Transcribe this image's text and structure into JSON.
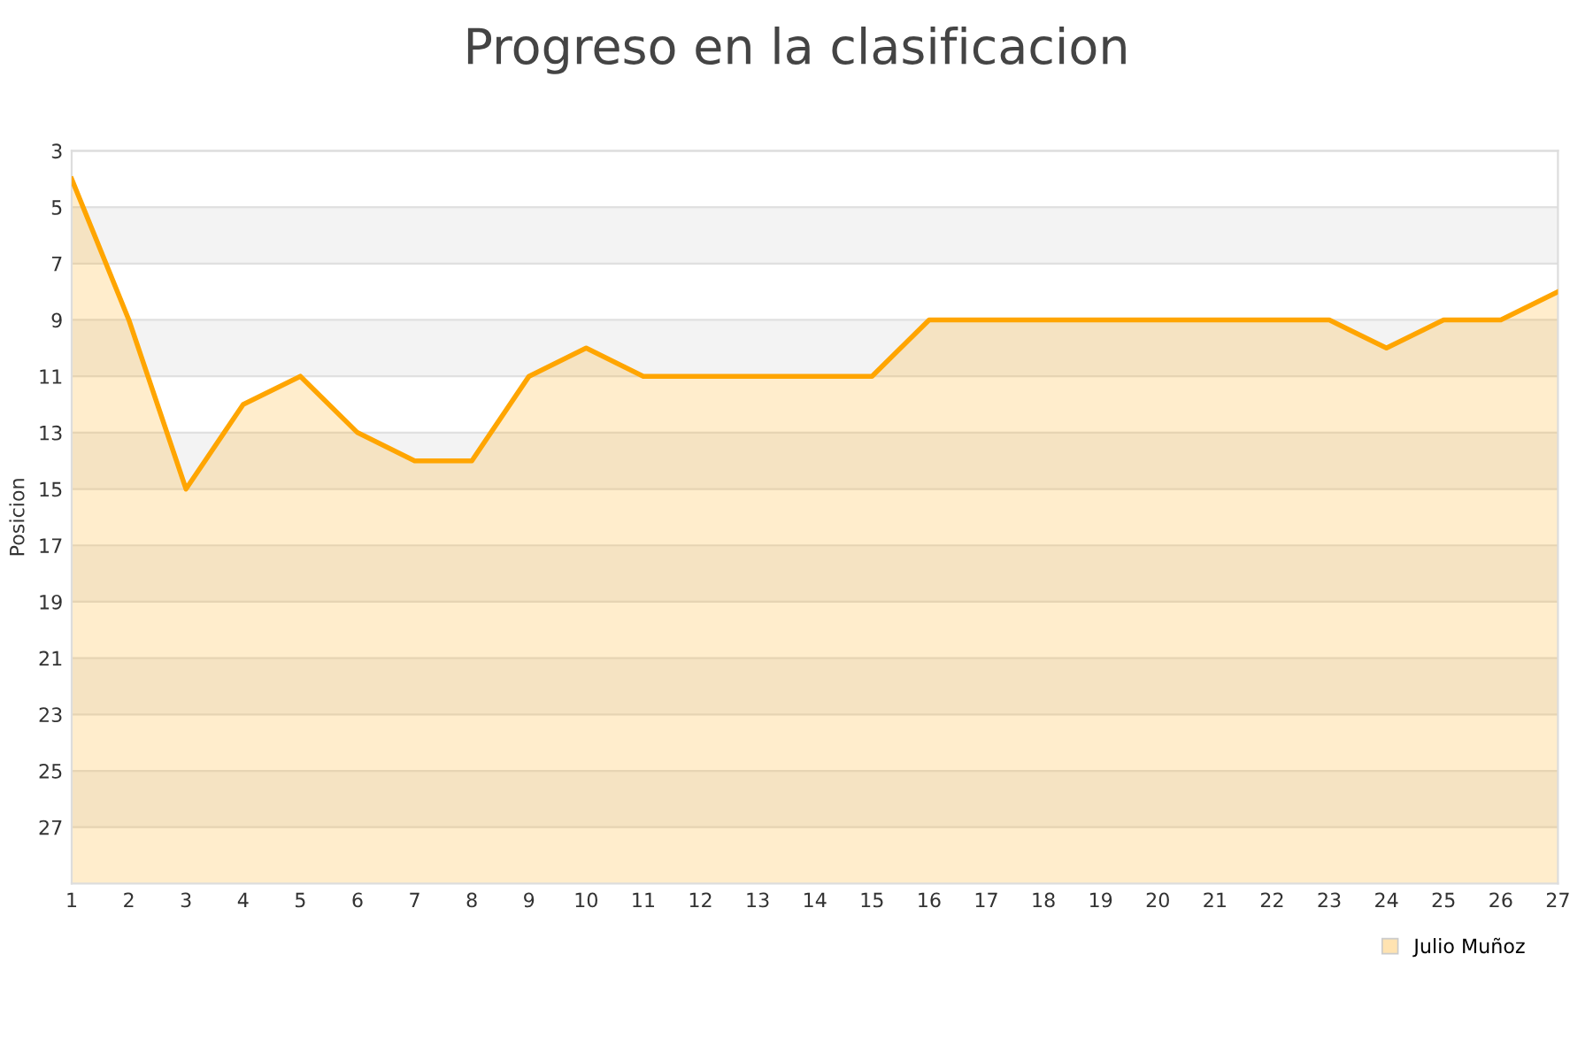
{
  "chart_data": {
    "type": "line",
    "title": "Progreso en la clasificacion",
    "ylabel": "Posicion",
    "x": [
      1,
      2,
      3,
      4,
      5,
      6,
      7,
      8,
      9,
      10,
      11,
      12,
      13,
      14,
      15,
      16,
      17,
      18,
      19,
      20,
      21,
      22,
      23,
      24,
      25,
      26,
      27
    ],
    "series": [
      {
        "name": "Julio Muñoz",
        "color": "#ffa500",
        "values": [
          4,
          9,
          15,
          12,
          11,
          13,
          14,
          14,
          11,
          10,
          11,
          11,
          11,
          11,
          11,
          9,
          9,
          9,
          9,
          9,
          9,
          9,
          9,
          10,
          9,
          9,
          8
        ],
        "lower": [
          4,
          9,
          15,
          12,
          11,
          13,
          14,
          14,
          11,
          10,
          11,
          11,
          11,
          11,
          11,
          9,
          9,
          9,
          9,
          9,
          9,
          9,
          9,
          10,
          9,
          9,
          8
        ],
        "upper": [
          29,
          29,
          29,
          29,
          29,
          29,
          29,
          29,
          29,
          29,
          29,
          29,
          29,
          29,
          29,
          29,
          29,
          29,
          29,
          29,
          29,
          29,
          29,
          29,
          29,
          29,
          29
        ]
      }
    ],
    "xlim": [
      1,
      27
    ],
    "xticks": [
      1,
      2,
      3,
      4,
      5,
      6,
      7,
      8,
      9,
      10,
      11,
      12,
      13,
      14,
      15,
      16,
      17,
      18,
      19,
      20,
      21,
      22,
      23,
      24,
      25,
      26,
      27
    ],
    "ylim": [
      29,
      3
    ],
    "yticks": [
      3,
      5,
      7,
      9,
      11,
      13,
      15,
      17,
      19,
      21,
      23,
      25,
      27
    ],
    "grid": "y",
    "legend": "bottom right",
    "marker": "none",
    "line_style": "solid"
  }
}
